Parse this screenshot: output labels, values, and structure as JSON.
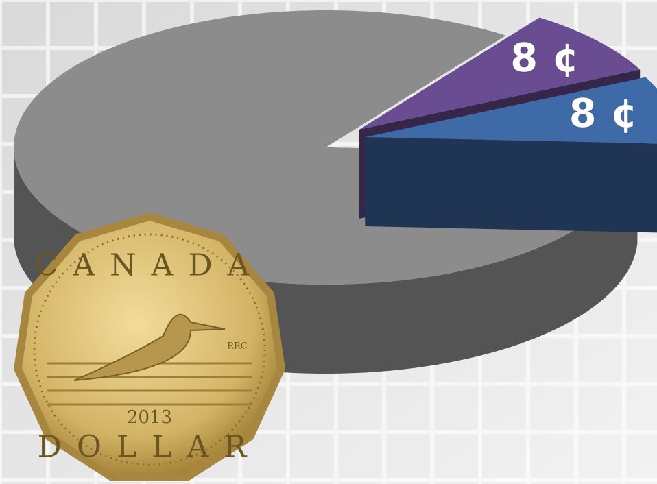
{
  "chart_data": {
    "type": "pie",
    "values": [
      84,
      8,
      8
    ],
    "value_labels": [
      null,
      "8 ¢",
      "8 ¢"
    ],
    "colors": [
      "#8c8c8c",
      "#6a4c93",
      "#3f6aa8"
    ],
    "exploded": [
      false,
      true,
      true
    ]
  },
  "coin": {
    "top": "CANADA",
    "mark": "RRC",
    "year": "2013",
    "bottom": "DOLLAR"
  }
}
